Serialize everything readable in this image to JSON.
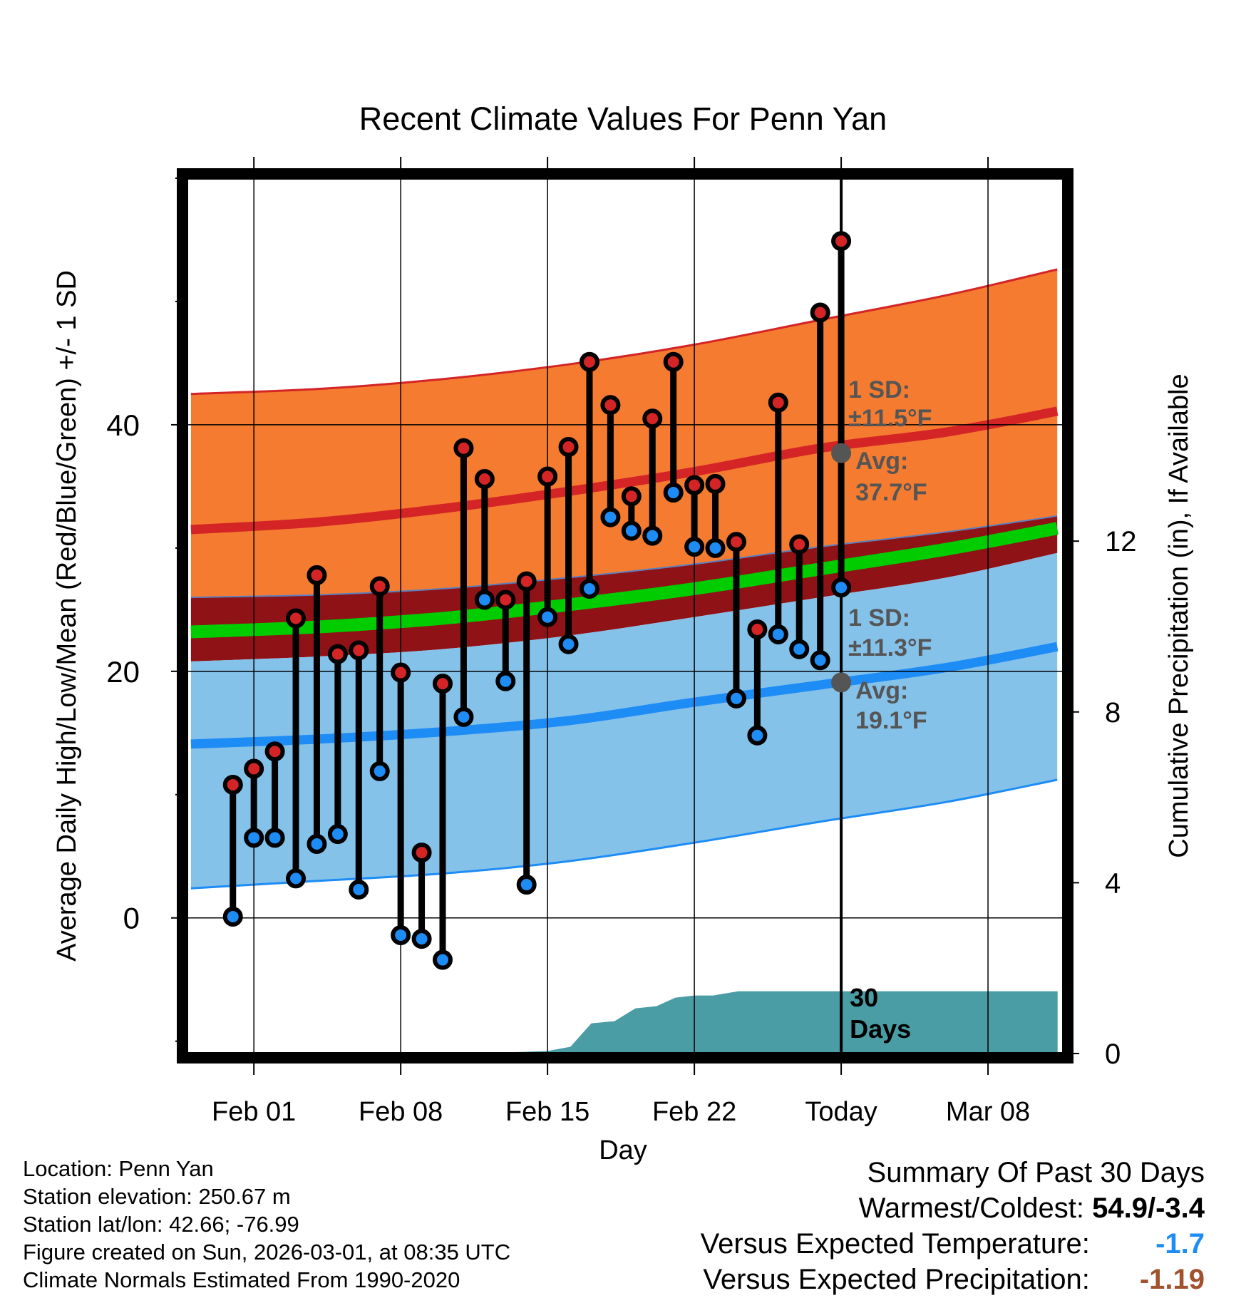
{
  "chart_data": {
    "type": "temperature-range",
    "title": "Recent Climate Values For Penn Yan",
    "xlabel": "Day",
    "ylabel": "Average Daily High/Low/Mean (Red/Blue/Green) +/- 1 SD",
    "y2label": "Cumulative Precipitation (in), If Available",
    "ylim": [
      -11,
      60
    ],
    "y2lim": [
      0,
      20.5
    ],
    "yticks": [
      0,
      20,
      40
    ],
    "y2ticks": [
      0,
      4,
      8,
      12
    ],
    "xlim": [
      -2.2,
      39.6
    ],
    "xticks": [
      {
        "day": 1,
        "label": "Feb 01"
      },
      {
        "day": 8,
        "label": "Feb 08"
      },
      {
        "day": 15,
        "label": "Feb 15"
      },
      {
        "day": 22,
        "label": "Feb 22"
      },
      {
        "day": 29,
        "label": "Today"
      },
      {
        "day": 36,
        "label": "Mar 08"
      }
    ],
    "today_day": 29,
    "daily_highs": [
      10.8,
      12.1,
      13.5,
      24.3,
      27.8,
      21.4,
      21.7,
      26.9,
      19.9,
      5.3,
      19.0,
      38.1,
      35.6,
      25.8,
      27.3,
      35.8,
      38.2,
      45.1,
      41.6,
      34.2,
      40.5,
      45.1,
      35.1,
      35.2,
      30.5,
      23.4,
      41.8,
      30.3,
      49.1,
      54.9
    ],
    "daily_lows": [
      0.1,
      6.5,
      6.5,
      3.2,
      6.0,
      6.8,
      2.3,
      11.9,
      -1.4,
      -1.7,
      -3.4,
      16.3,
      25.8,
      19.2,
      2.7,
      24.4,
      22.2,
      26.7,
      32.5,
      31.4,
      31.0,
      34.5,
      30.1,
      30.0,
      17.8,
      14.8,
      23.0,
      21.8,
      20.9,
      26.8
    ],
    "normals": {
      "days": [
        -2,
        4,
        10,
        16,
        22,
        28,
        34,
        39.3
      ],
      "high_mean": [
        31.5,
        32.1,
        33.2,
        34.6,
        36.2,
        38.1,
        39.4,
        41.1
      ],
      "high_upper": [
        42.5,
        42.9,
        43.7,
        44.9,
        46.5,
        48.5,
        50.5,
        52.6
      ],
      "high_lower": [
        26.0,
        26.2,
        26.7,
        27.6,
        28.7,
        30.1,
        31.3,
        32.6
      ],
      "mean": [
        23.2,
        23.6,
        24.3,
        25.4,
        26.7,
        28.3,
        29.9,
        31.6
      ],
      "low_mean": [
        14.1,
        14.5,
        15.1,
        16.0,
        17.5,
        18.9,
        20.3,
        22.0
      ],
      "low_upper": [
        20.8,
        21.2,
        21.8,
        22.9,
        24.4,
        26.0,
        27.6,
        29.6
      ],
      "low_lower": [
        2.4,
        3.0,
        3.6,
        4.6,
        6.1,
        7.8,
        9.4,
        11.2
      ]
    },
    "precip_cumulative": {
      "days": [
        12,
        15,
        16.1,
        17.1,
        18.2,
        19.2,
        20.2,
        21.1,
        22,
        22.9,
        24.1,
        25,
        39.3
      ],
      "values": [
        0.0,
        0.05,
        0.15,
        0.7,
        0.75,
        1.05,
        1.1,
        1.3,
        1.35,
        1.35,
        1.45,
        1.45,
        1.45
      ]
    },
    "annotations": {
      "high_sd_label": "1 SD:",
      "high_sd_value": "±11.5°F",
      "high_avg_label": "Avg:",
      "high_avg_value": "37.7°F",
      "high_avg": 37.7,
      "low_sd_label": "1 SD:",
      "low_sd_value": "±11.3°F",
      "low_avg_label": "Avg:",
      "low_avg_value": "19.1°F",
      "low_avg": 19.1,
      "period_label_1": "30",
      "period_label_2": "Days"
    },
    "colors": {
      "high_band": "#f47b30",
      "high_line": "#d42426",
      "mean_band": "#8f1216",
      "mean_line": "#00cc00",
      "low_band": "#85c2ea",
      "low_line": "#1e8cf5",
      "precip": "#4a9ca5",
      "high_dot": "#d42426",
      "low_dot": "#1e8cf5",
      "annotation": "#555555"
    }
  },
  "info": {
    "location": "Location: Penn Yan",
    "elevation": "Station elevation: 250.67 m",
    "latlon": "Station lat/lon: 42.66; -76.99",
    "created": "Figure created on Sun, 2026-03-01, at 08:35 UTC",
    "normals": "Climate Normals Estimated From 1990-2020"
  },
  "summary": {
    "heading": "Summary Of Past 30 Days",
    "warmest_label": "Warmest/Coldest:",
    "warmest_value": "54.9/-3.4",
    "temp_label": "Versus Expected Temperature:",
    "temp_value": "-1.7",
    "temp_color": "#1e8cf5",
    "precip_label": "Versus Expected Precipitation:",
    "precip_value": "-1.19",
    "precip_color": "#a0522d"
  }
}
